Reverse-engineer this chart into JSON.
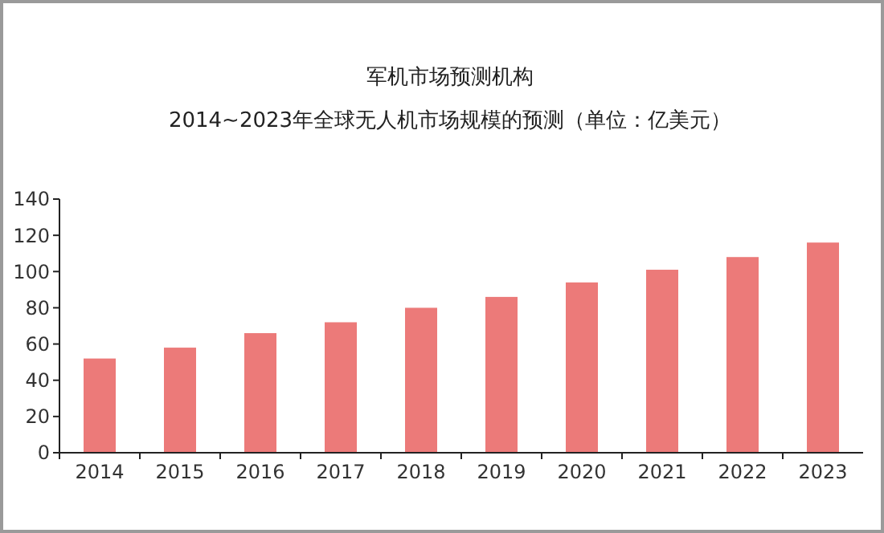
{
  "chart_data": {
    "type": "bar",
    "title": "军机市场预测机构",
    "subtitle": "2014~2023年全球无人机市场规模的预测（单位：亿美元）",
    "categories": [
      "2014",
      "2015",
      "2016",
      "2017",
      "2018",
      "2019",
      "2020",
      "2021",
      "2022",
      "2023"
    ],
    "values": [
      52,
      58,
      66,
      72,
      80,
      86,
      94,
      101,
      108,
      116
    ],
    "color": "#ec7a79",
    "ylim": [
      0,
      140
    ],
    "yticks": [
      0,
      20,
      40,
      60,
      80,
      100,
      120,
      140
    ],
    "grid": false
  }
}
